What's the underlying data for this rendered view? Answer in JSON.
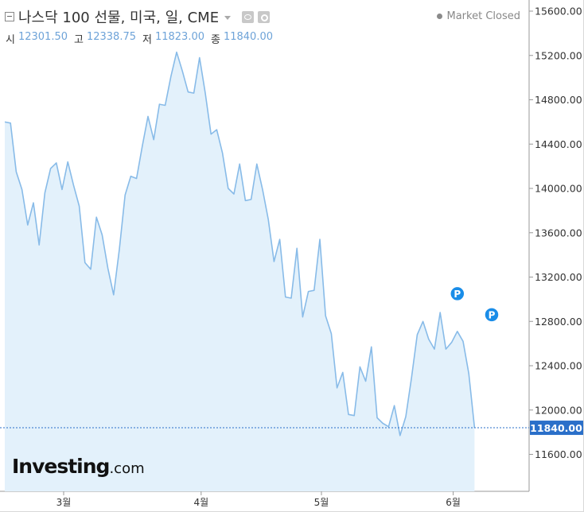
{
  "header": {
    "title": "나스닥 100 선물, 미국, 일, CME",
    "market_status": "Market Closed",
    "ohlc": [
      {
        "label": "시",
        "value": "12301.50"
      },
      {
        "label": "고",
        "value": "12338.75"
      },
      {
        "label": "저",
        "value": "11823.00"
      },
      {
        "label": "종",
        "value": "11840.00"
      }
    ]
  },
  "logo": {
    "main": "Investing",
    "suffix": ".com"
  },
  "colors": {
    "line": "#88bbe8",
    "fill": "#e3f1fb",
    "label_bg": "#2a6fc9",
    "marker": "#1a8de8",
    "axis_text": "#333333"
  },
  "chart_data": {
    "type": "area",
    "title": "나스닥 100 선물, 미국, 일, CME",
    "xlabel": "",
    "ylabel": "",
    "ylim": [
      11200,
      15700
    ],
    "y_ticks": [
      "15600.00",
      "15200.00",
      "14800.00",
      "14400.00",
      "14000.00",
      "13600.00",
      "13200.00",
      "12800.00",
      "12400.00",
      "12000.00",
      "11600.00"
    ],
    "x_ticks": [
      {
        "label": "3월",
        "index": 10
      },
      {
        "label": "4월",
        "index": 34
      },
      {
        "label": "5월",
        "index": 55
      },
      {
        "label": "6월",
        "index": 78
      }
    ],
    "last_price": {
      "value": 11840,
      "label": "11840.00"
    },
    "markers": [
      {
        "index": 79,
        "value": 13050,
        "label": "P"
      },
      {
        "index": 85,
        "value": 12860,
        "label": "P"
      }
    ],
    "grid": false,
    "legend": "none",
    "values": [
      14600,
      14590,
      14150,
      13990,
      13670,
      13870,
      13490,
      13960,
      14180,
      14230,
      13990,
      14240,
      14030,
      13840,
      13330,
      13270,
      13740,
      13580,
      13280,
      13040,
      13450,
      13940,
      14110,
      14090,
      14380,
      14650,
      14440,
      14760,
      14750,
      15010,
      15230,
      15060,
      14870,
      14860,
      15180,
      14860,
      14490,
      14530,
      14320,
      14000,
      13950,
      14220,
      13890,
      13900,
      14220,
      13990,
      13720,
      13340,
      13540,
      13020,
      13010,
      13460,
      12840,
      13070,
      13080,
      13540,
      12850,
      12690,
      12200,
      12340,
      11960,
      11950,
      12390,
      12260,
      12570,
      11930,
      11880,
      11850,
      12040,
      11770,
      11940,
      12290,
      12680,
      12800,
      12640,
      12550,
      12880,
      12550,
      12610,
      12710,
      12620,
      12330,
      11840
    ]
  }
}
